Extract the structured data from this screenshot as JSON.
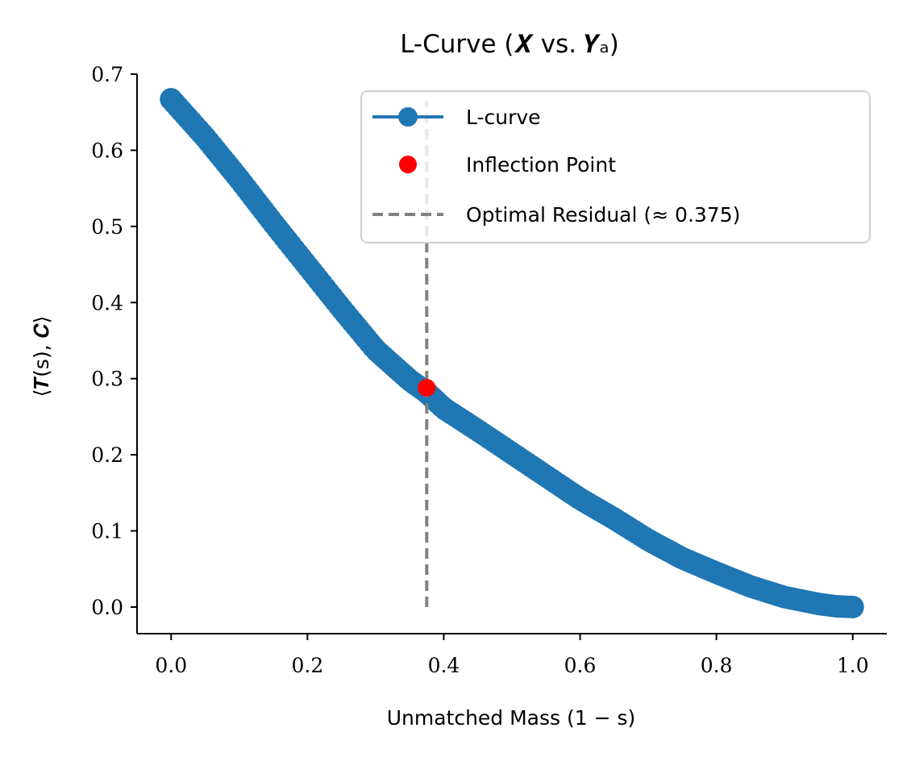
{
  "chart_data": {
    "type": "line",
    "title": "L-Curve (𝑿 vs. 𝒀ₐ)",
    "xlabel": "Unmatched Mass (1 − s)",
    "ylabel": "⟨𝑻(s), 𝑪⟩",
    "xlim": [
      -0.05,
      1.05
    ],
    "ylim": [
      -0.035,
      0.7
    ],
    "xticks": [
      0.0,
      0.2,
      0.4,
      0.6,
      0.8,
      1.0
    ],
    "yticks": [
      0.0,
      0.1,
      0.2,
      0.3,
      0.4,
      0.5,
      0.6,
      0.7
    ],
    "xtick_labels": [
      "0.0",
      "0.2",
      "0.4",
      "0.6",
      "0.8",
      "1.0"
    ],
    "ytick_labels": [
      "0.0",
      "0.1",
      "0.2",
      "0.3",
      "0.4",
      "0.5",
      "0.6",
      "0.7"
    ],
    "series": [
      {
        "name": "L-curve",
        "color": "#1f77b4",
        "x": [
          0.0,
          0.05,
          0.1,
          0.15,
          0.2,
          0.25,
          0.3,
          0.35,
          0.375,
          0.4,
          0.45,
          0.5,
          0.55,
          0.6,
          0.65,
          0.7,
          0.75,
          0.8,
          0.85,
          0.9,
          0.95,
          0.975,
          1.0
        ],
        "y": [
          0.667,
          0.617,
          0.562,
          0.504,
          0.448,
          0.392,
          0.338,
          0.298,
          0.282,
          0.261,
          0.232,
          0.202,
          0.172,
          0.142,
          0.116,
          0.088,
          0.064,
          0.045,
          0.027,
          0.013,
          0.004,
          0.001,
          0.0
        ],
        "marker_count": 200
      }
    ],
    "annotations": {
      "inflection_point": {
        "name": "Inflection Point",
        "x": 0.375,
        "y": 0.288,
        "color": "#ff0000"
      },
      "vline": {
        "name": "Optimal Residual (≈ 0.375)",
        "x": 0.375,
        "y_range": [
          0.0,
          0.665
        ],
        "color": "#808080"
      }
    },
    "legend": {
      "placement": "top-right",
      "entries": [
        "L-curve",
        "Inflection Point",
        "Optimal Residual (≈ 0.375)"
      ]
    }
  }
}
